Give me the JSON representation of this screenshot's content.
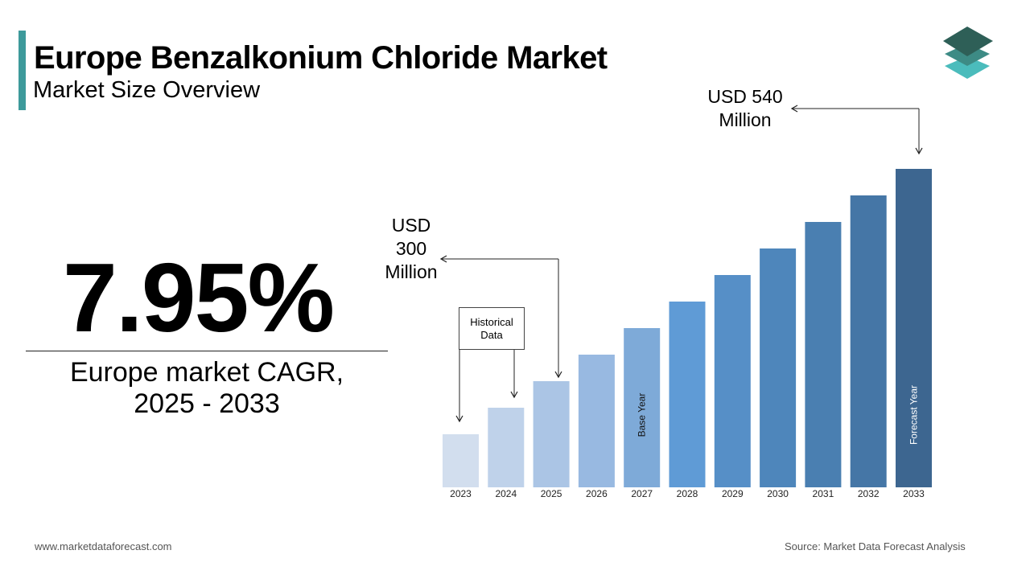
{
  "header": {
    "title": "Europe Benzalkonium Chloride Market",
    "subtitle": "Market Size Overview"
  },
  "colors": {
    "accent": "#3d9a9b",
    "logo_top": "#2e5f57",
    "logo_mid": "#3d8b85",
    "logo_bottom": "#4bbcbc",
    "bars": [
      "#d2deee",
      "#bfd2ea",
      "#abc5e5",
      "#98b9e1",
      "#7eaad8",
      "#5f9bd6",
      "#568fc7",
      "#4e86bb",
      "#4a7fb1",
      "#4576a6",
      "#3d6690"
    ]
  },
  "icons": {
    "logo": "layered-squares-logo-icon"
  },
  "cagr": {
    "value": "7.95%",
    "label_line1": "Europe market CAGR,",
    "label_line2": "2025 - 2033"
  },
  "annotations": {
    "top_line1": "USD 540",
    "top_line2": "Million",
    "mid_line1": "USD",
    "mid_line2": "300",
    "mid_line3": "Million",
    "historical_line1": "Historical",
    "historical_line2": "Data",
    "base_year": "Base Year",
    "forecast_year": "Forecast Year"
  },
  "chart_data": {
    "type": "bar",
    "categories": [
      "2023",
      "2024",
      "2025",
      "2026",
      "2027",
      "2028",
      "2029",
      "2030",
      "2031",
      "2032",
      "2033"
    ],
    "values": [
      2,
      3,
      4,
      5,
      6,
      7,
      8,
      9,
      10,
      11,
      12
    ],
    "grid": false,
    "legend": "none"
  },
  "footer": {
    "website": "www.marketdataforecast.com",
    "source": "Source: Market Data Forecast Analysis"
  }
}
